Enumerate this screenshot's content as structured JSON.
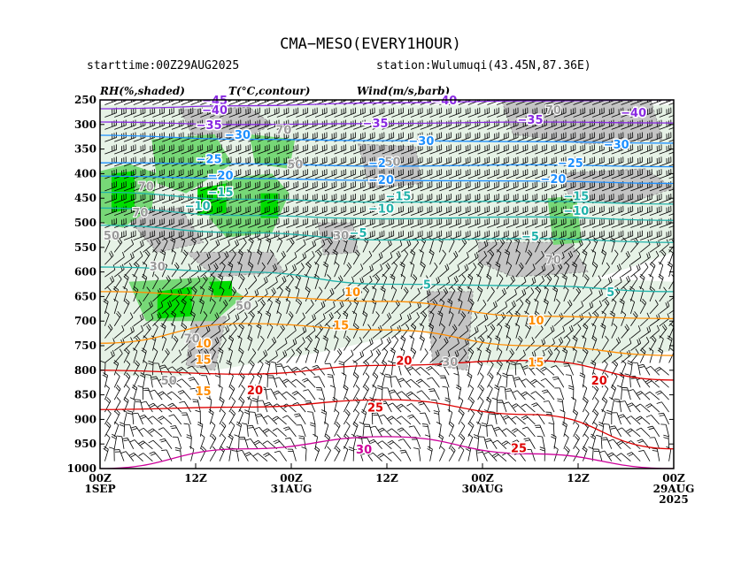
{
  "header": {
    "title": "CMA−MESO(EVERY1HOUR)",
    "starttime": "starttime:00Z29AUG2025",
    "station": "station:Wulumuqi(43.45N,87.36E)"
  },
  "legend": {
    "rh": "RH(%,shaded)",
    "temp": "T(°C,contour)",
    "wind": "Wind(m/s,barb)"
  },
  "colors": {
    "rh_90": "#00dd00",
    "rh_80": "#77d877",
    "rh_70": "#c4c4c4",
    "rh_50": "#e6f2e6",
    "temp_cold": "#8a2be2",
    "temp_mid": "#1e90ff",
    "temp_zero": "#20b2aa",
    "temp_warm": "#ff8c00",
    "temp_hot": "#dd0000",
    "barb": "#000000"
  },
  "chart_data": {
    "type": "time-height cross-section",
    "title": "CMA−MESO(EVERY1HOUR)",
    "y_axis": {
      "unit": "hPa",
      "ticks": [
        250,
        300,
        350,
        400,
        450,
        500,
        550,
        600,
        650,
        700,
        750,
        800,
        850,
        900,
        950,
        1000
      ]
    },
    "x_axis": {
      "ticks": [
        {
          "line1": "00Z",
          "line2": "1SEP",
          "line3": ""
        },
        {
          "line1": "12Z",
          "line2": "",
          "line3": ""
        },
        {
          "line1": "00Z",
          "line2": "31AUG",
          "line3": ""
        },
        {
          "line1": "12Z",
          "line2": "",
          "line3": ""
        },
        {
          "line1": "00Z",
          "line2": "30AUG",
          "line3": ""
        },
        {
          "line1": "12Z",
          "line2": "",
          "line3": ""
        },
        {
          "line1": "00Z",
          "line2": "29AUG",
          "line3": "2025"
        }
      ],
      "direction": "time decreases left to right (1SEP 00Z to 29AUG 00Z)",
      "hours_span": 72
    },
    "rh_levels": [
      50,
      70,
      80,
      90
    ],
    "temperature_contours_C": [
      {
        "value": -45,
        "pressure": [
          250,
          248,
          246,
          244,
          243
        ]
      },
      {
        "value": -40,
        "pressure": [
          268,
          262,
          256,
          252,
          250
        ]
      },
      {
        "value": -35,
        "pressure": [
          295,
          300,
          298,
          295,
          297
        ]
      },
      {
        "value": -30,
        "pressure": [
          322,
          330,
          333,
          335,
          338
        ]
      },
      {
        "value": -25,
        "pressure": [
          378,
          380,
          385,
          382,
          386
        ]
      },
      {
        "value": -20,
        "pressure": [
          405,
          410,
          414,
          415,
          420
        ]
      },
      {
        "value": -15,
        "pressure": [
          438,
          452,
          458,
          456,
          462
        ]
      },
      {
        "value": -10,
        "pressure": [
          470,
          485,
          492,
          488,
          495
        ]
      },
      {
        "value": -5,
        "pressure": [
          505,
          520,
          535,
          532,
          540
        ]
      },
      {
        "value": 5,
        "pressure": [
          590,
          600,
          625,
          628,
          640
        ]
      },
      {
        "value": 10,
        "pressure": [
          640,
          650,
          660,
          690,
          695
        ]
      },
      {
        "value": 15,
        "pressure": [
          745,
          705,
          718,
          750,
          770
        ]
      },
      {
        "value": 20,
        "pressure": [
          800,
          808,
          790,
          780,
          820
        ]
      },
      {
        "value": 25,
        "pressure": [
          880,
          875,
          860,
          890,
          960
        ]
      },
      {
        "value": 30,
        "pressure": [
          1000,
          960,
          935,
          970,
          1000
        ]
      }
    ],
    "labels": [
      {
        "t": -45,
        "x": 0.2,
        "p": 250
      },
      {
        "t": -40,
        "x": 0.2,
        "p": 270
      },
      {
        "t": -40,
        "x": 0.6,
        "p": 250
      },
      {
        "t": -40,
        "x": 0.93,
        "p": 275
      },
      {
        "t": -35,
        "x": 0.19,
        "p": 300
      },
      {
        "t": -35,
        "x": 0.48,
        "p": 297
      },
      {
        "t": -35,
        "x": 0.75,
        "p": 290
      },
      {
        "t": -30,
        "x": 0.24,
        "p": 320
      },
      {
        "t": -30,
        "x": 0.56,
        "p": 333
      },
      {
        "t": -30,
        "x": 0.9,
        "p": 340
      },
      {
        "t": -25,
        "x": 0.19,
        "p": 370
      },
      {
        "t": -25,
        "x": 0.49,
        "p": 378
      },
      {
        "t": -25,
        "x": 0.82,
        "p": 378
      },
      {
        "t": -20,
        "x": 0.21,
        "p": 403
      },
      {
        "t": -20,
        "x": 0.49,
        "p": 412
      },
      {
        "t": -20,
        "x": 0.79,
        "p": 410
      },
      {
        "t": -15,
        "x": 0.21,
        "p": 437
      },
      {
        "t": -15,
        "x": 0.52,
        "p": 445
      },
      {
        "t": -15,
        "x": 0.83,
        "p": 445
      },
      {
        "t": -10,
        "x": 0.17,
        "p": 465
      },
      {
        "t": -10,
        "x": 0.49,
        "p": 470
      },
      {
        "t": -10,
        "x": 0.83,
        "p": 475
      },
      {
        "t": -5,
        "x": 0.45,
        "p": 520
      },
      {
        "t": -5,
        "x": 0.75,
        "p": 527
      },
      {
        "t": 5,
        "x": 0.57,
        "p": 625
      },
      {
        "t": 5,
        "x": 0.89,
        "p": 640
      },
      {
        "t": 10,
        "x": 0.44,
        "p": 640
      },
      {
        "t": 10,
        "x": 0.76,
        "p": 698
      },
      {
        "t": 10,
        "x": 0.18,
        "p": 745
      },
      {
        "t": 15,
        "x": 0.42,
        "p": 708
      },
      {
        "t": 15,
        "x": 0.76,
        "p": 783
      },
      {
        "t": 15,
        "x": 0.18,
        "p": 778
      },
      {
        "t": 15,
        "x": 0.18,
        "p": 842
      },
      {
        "t": 20,
        "x": 0.53,
        "p": 780
      },
      {
        "t": 20,
        "x": 0.87,
        "p": 820
      },
      {
        "t": 20,
        "x": 0.27,
        "p": 840
      },
      {
        "t": 25,
        "x": 0.48,
        "p": 875
      },
      {
        "t": 25,
        "x": 0.73,
        "p": 958
      },
      {
        "t": 30,
        "x": 0.46,
        "p": 960
      }
    ],
    "rh_labels": [
      {
        "v": 70,
        "x": 0.79,
        "p": 270
      },
      {
        "v": 70,
        "x": 0.32,
        "p": 310
      },
      {
        "v": 50,
        "x": 0.34,
        "p": 380
      },
      {
        "v": 50,
        "x": 0.51,
        "p": 375
      },
      {
        "v": 70,
        "x": 0.08,
        "p": 425
      },
      {
        "v": 70,
        "x": 0.07,
        "p": 478
      },
      {
        "v": 50,
        "x": 0.02,
        "p": 525
      },
      {
        "v": 70,
        "x": 0.79,
        "p": 575
      },
      {
        "v": 30,
        "x": 0.42,
        "p": 525
      },
      {
        "v": 30,
        "x": 0.1,
        "p": 588
      },
      {
        "v": 50,
        "x": 0.25,
        "p": 668
      },
      {
        "v": 70,
        "x": 0.16,
        "p": 735
      },
      {
        "v": 30,
        "x": 0.61,
        "p": 782
      },
      {
        "v": 50,
        "x": 0.12,
        "p": 820
      }
    ]
  }
}
